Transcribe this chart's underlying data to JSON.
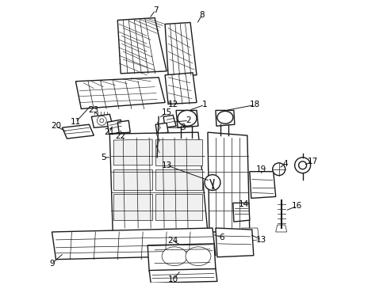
{
  "bg_color": "#ffffff",
  "line_color": "#1a1a1a",
  "lw_main": 1.0,
  "lw_thin": 0.5,
  "label_fontsize": 7.5
}
